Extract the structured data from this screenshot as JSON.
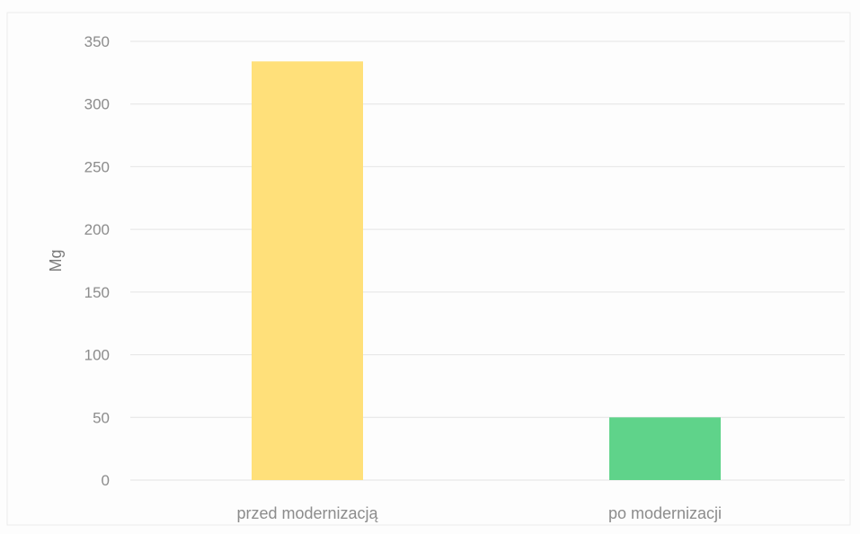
{
  "chart_data": {
    "type": "bar",
    "categories": [
      "przed modernizacją",
      "po modernizacji"
    ],
    "values": [
      334,
      50
    ],
    "colors": [
      "#ffe07a",
      "#5fd38a"
    ],
    "title": "",
    "xlabel": "",
    "ylabel": "Mg",
    "ylim": [
      0,
      350
    ],
    "yticks": [
      0,
      50,
      100,
      150,
      200,
      250,
      300,
      350
    ],
    "grid": true,
    "legend": "none"
  }
}
